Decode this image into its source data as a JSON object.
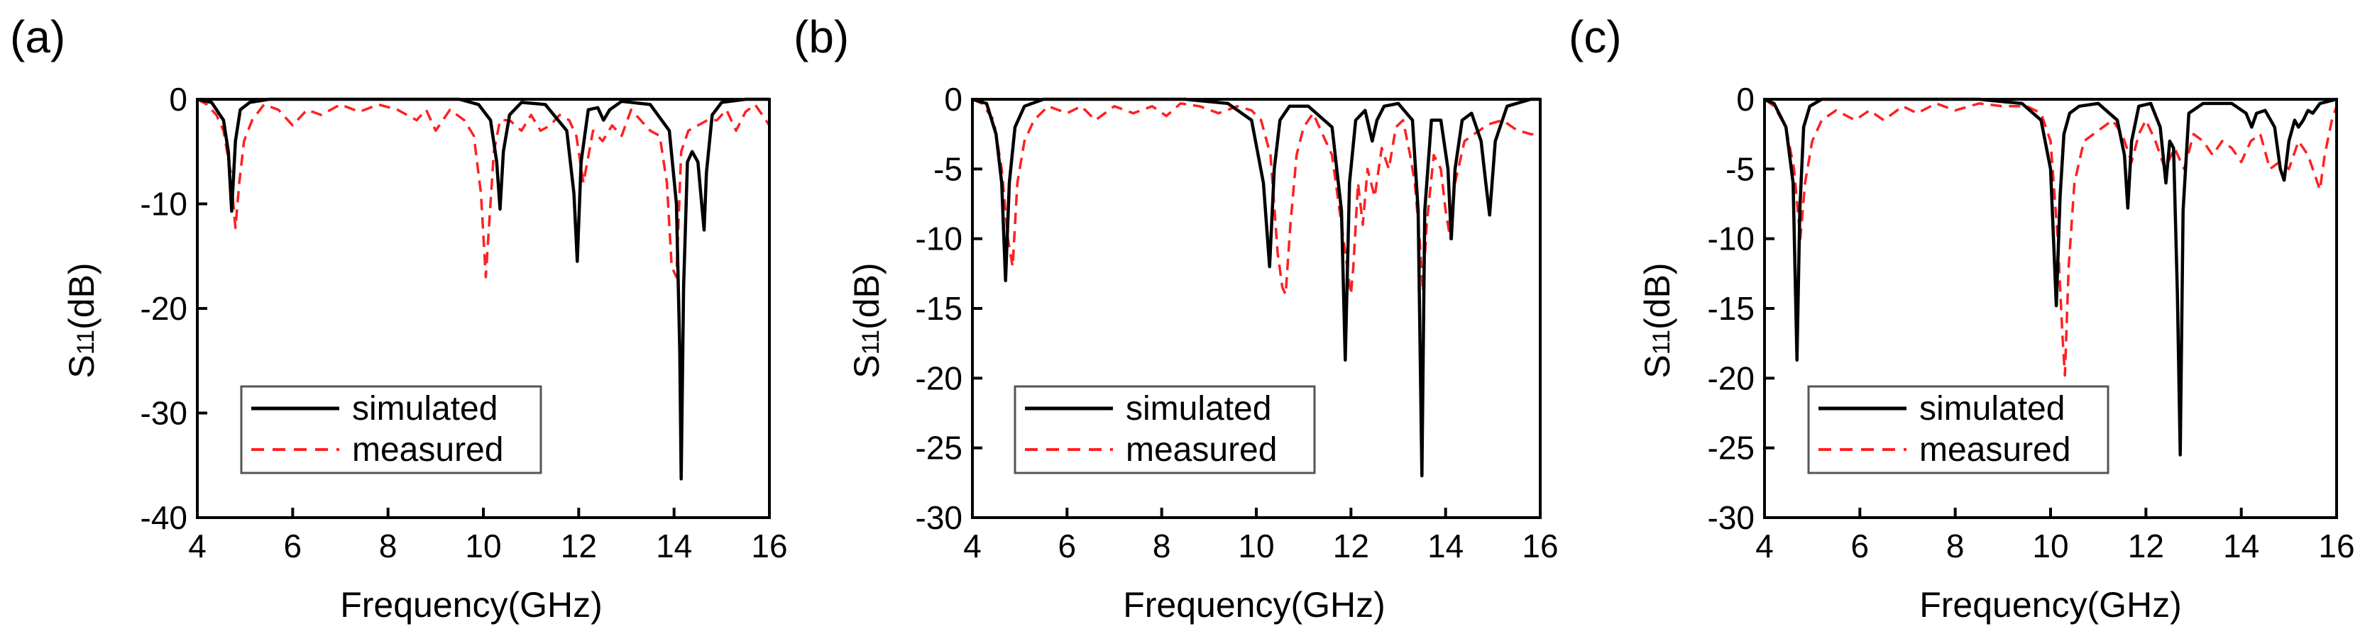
{
  "colors": {
    "simulated": "#000000",
    "measured": "#ff2020",
    "axis": "#000000",
    "legend_border": "#555555"
  },
  "chart_data": [
    {
      "type": "line",
      "panel_label": "(a)",
      "xlabel": "Frequency(GHz)",
      "ylabel_main": "S",
      "ylabel_sub": "11",
      "ylabel_unit": "(dB)",
      "xlim": [
        4,
        16
      ],
      "ylim": [
        -40,
        0
      ],
      "xticks": [
        4,
        6,
        8,
        10,
        12,
        14,
        16
      ],
      "yticks": [
        0,
        -10,
        -20,
        -30,
        -40
      ],
      "series": [
        {
          "name": "simulated",
          "style": "solid",
          "x": [
            4.0,
            4.3,
            4.55,
            4.65,
            4.72,
            4.8,
            4.9,
            5.1,
            5.5,
            7.0,
            8.5,
            9.5,
            9.9,
            10.15,
            10.28,
            10.35,
            10.42,
            10.55,
            10.8,
            11.3,
            11.75,
            11.9,
            11.97,
            12.05,
            12.2,
            12.4,
            12.52,
            12.65,
            12.9,
            13.5,
            13.9,
            14.05,
            14.12,
            14.15,
            14.2,
            14.28,
            14.38,
            14.5,
            14.58,
            14.63,
            14.68,
            14.8,
            15.0,
            15.5,
            16.0
          ],
          "y": [
            0,
            -0.3,
            -2,
            -5,
            -10.7,
            -4,
            -1,
            -0.3,
            0,
            0,
            0,
            0,
            -0.5,
            -2,
            -6,
            -10.5,
            -5,
            -1.5,
            -0.3,
            -0.5,
            -3,
            -9,
            -15.5,
            -6,
            -1,
            -0.8,
            -2,
            -1,
            -0.2,
            -0.5,
            -3,
            -10,
            -24,
            -36.3,
            -18,
            -6,
            -5,
            -6,
            -10,
            -12.5,
            -7,
            -1.5,
            -0.3,
            0,
            0
          ]
        },
        {
          "name": "measured",
          "style": "dashed",
          "x": [
            4.0,
            4.2,
            4.4,
            4.55,
            4.7,
            4.8,
            4.88,
            4.98,
            5.15,
            5.4,
            5.7,
            6.0,
            6.3,
            6.6,
            7.0,
            7.4,
            7.8,
            8.2,
            8.6,
            8.8,
            9.0,
            9.3,
            9.6,
            9.8,
            9.95,
            10.05,
            10.12,
            10.22,
            10.35,
            10.55,
            10.8,
            11.0,
            11.2,
            11.4,
            11.6,
            11.8,
            11.95,
            12.1,
            12.3,
            12.5,
            12.7,
            12.9,
            13.1,
            13.3,
            13.5,
            13.7,
            13.85,
            13.95,
            14.05,
            14.15,
            14.3,
            14.5,
            14.7,
            14.9,
            15.1,
            15.3,
            15.5,
            15.7,
            15.85,
            16.0
          ],
          "y": [
            0,
            -0.5,
            -1.5,
            -3,
            -7,
            -12.3,
            -8,
            -4,
            -2,
            -0.5,
            -1,
            -2.5,
            -1,
            -1.5,
            -0.5,
            -1.2,
            -0.5,
            -1,
            -2,
            -1,
            -3,
            -1,
            -2,
            -3.5,
            -9,
            -17,
            -12,
            -5,
            -2,
            -2,
            -3,
            -1.5,
            -3,
            -2.5,
            -1.5,
            -2,
            -3.5,
            -8,
            -3,
            -4,
            -2.5,
            -3.5,
            -1,
            -2,
            -3,
            -3.5,
            -8,
            -16,
            -17,
            -5,
            -3,
            -2.5,
            -2,
            -2,
            -1,
            -3,
            -1.2,
            -0.5,
            -1.5,
            -2.5
          ]
        }
      ],
      "legend": [
        "simulated",
        "measured"
      ]
    },
    {
      "type": "line",
      "panel_label": "(b)",
      "xlabel": "Frequency(GHz)",
      "ylabel_main": "S",
      "ylabel_sub": "11",
      "ylabel_unit": "(dB)",
      "xlim": [
        4,
        16
      ],
      "ylim": [
        -30,
        0
      ],
      "xticks": [
        4,
        6,
        8,
        10,
        12,
        14,
        16
      ],
      "yticks": [
        0,
        -5,
        -10,
        -15,
        -20,
        -25,
        -30
      ],
      "series": [
        {
          "name": "simulated",
          "style": "solid",
          "x": [
            4.0,
            4.3,
            4.5,
            4.62,
            4.7,
            4.78,
            4.9,
            5.1,
            5.5,
            7.0,
            8.5,
            9.4,
            9.9,
            10.15,
            10.28,
            10.38,
            10.5,
            10.7,
            11.1,
            11.6,
            11.8,
            11.88,
            11.97,
            12.1,
            12.3,
            12.45,
            12.55,
            12.7,
            13.0,
            13.3,
            13.42,
            13.5,
            13.56,
            13.7,
            13.9,
            14.05,
            14.12,
            14.2,
            14.35,
            14.55,
            14.75,
            14.85,
            14.93,
            15.05,
            15.3,
            15.8,
            16.0
          ],
          "y": [
            0,
            -0.3,
            -2.5,
            -6,
            -13,
            -6,
            -2,
            -0.5,
            0,
            0,
            0,
            -0.3,
            -1.5,
            -6,
            -12,
            -5,
            -1.5,
            -0.5,
            -0.5,
            -2,
            -8,
            -18.7,
            -6,
            -1.5,
            -0.8,
            -3,
            -1.5,
            -0.5,
            -0.3,
            -1.5,
            -8,
            -27,
            -8,
            -1.5,
            -1.5,
            -5,
            -10,
            -5,
            -1.5,
            -1,
            -3,
            -6,
            -8.3,
            -3,
            -0.5,
            0,
            0
          ]
        },
        {
          "name": "measured",
          "style": "dashed",
          "x": [
            4.0,
            4.2,
            4.45,
            4.62,
            4.75,
            4.85,
            4.95,
            5.1,
            5.3,
            5.6,
            6.0,
            6.3,
            6.6,
            7.0,
            7.4,
            7.8,
            8.1,
            8.4,
            8.8,
            9.2,
            9.6,
            9.9,
            10.1,
            10.3,
            10.45,
            10.55,
            10.62,
            10.72,
            10.85,
            11.0,
            11.2,
            11.4,
            11.6,
            11.8,
            12.0,
            12.05,
            12.15,
            12.25,
            12.35,
            12.5,
            12.65,
            12.8,
            12.95,
            13.1,
            13.25,
            13.35,
            13.45,
            13.52,
            13.6,
            13.75,
            13.9,
            14.0,
            14.1,
            14.2,
            14.4,
            14.6,
            14.9,
            15.2,
            15.5,
            15.8,
            16.0
          ],
          "y": [
            0,
            -0.3,
            -1.5,
            -5,
            -10,
            -12,
            -6,
            -3,
            -1.5,
            -0.5,
            -1,
            -0.5,
            -1.5,
            -0.5,
            -1,
            -0.5,
            -1.2,
            -0.3,
            -0.5,
            -1,
            -0.5,
            -0.8,
            -1.5,
            -4,
            -11,
            -13.5,
            -14,
            -9,
            -4,
            -2,
            -1,
            -2.5,
            -4,
            -9,
            -14,
            -12,
            -6,
            -9,
            -5,
            -7,
            -3.5,
            -5,
            -2,
            -1.5,
            -4,
            -6,
            -10,
            -13.8,
            -9,
            -4,
            -5,
            -8,
            -10,
            -6,
            -3,
            -2.5,
            -1.8,
            -1.5,
            -2.2,
            -2.5,
            -2.5
          ]
        }
      ],
      "legend": [
        "simulated",
        "measured"
      ]
    },
    {
      "type": "line",
      "panel_label": "(c)",
      "xlabel": "Frequency(GHz)",
      "ylabel_main": "S",
      "ylabel_sub": "11",
      "ylabel_unit": "(dB)",
      "xlim": [
        4,
        16
      ],
      "ylim": [
        -30,
        0
      ],
      "xticks": [
        4,
        6,
        8,
        10,
        12,
        14,
        16
      ],
      "yticks": [
        0,
        -5,
        -10,
        -15,
        -20,
        -25,
        -30
      ],
      "series": [
        {
          "name": "simulated",
          "style": "solid",
          "x": [
            4.0,
            4.2,
            4.45,
            4.6,
            4.68,
            4.74,
            4.82,
            4.95,
            5.2,
            5.6,
            7.0,
            8.5,
            9.4,
            9.8,
            10.0,
            10.12,
            10.2,
            10.28,
            10.4,
            10.6,
            11.0,
            11.4,
            11.55,
            11.62,
            11.7,
            11.85,
            12.1,
            12.3,
            12.42,
            12.5,
            12.58,
            12.66,
            12.72,
            12.78,
            12.9,
            13.2,
            13.8,
            14.1,
            14.22,
            14.32,
            14.5,
            14.7,
            14.82,
            14.9,
            15.0,
            15.12,
            15.2,
            15.3,
            15.4,
            15.5,
            15.65,
            16.0
          ],
          "y": [
            0,
            -0.3,
            -2,
            -6,
            -18.7,
            -8,
            -2,
            -0.5,
            0,
            0,
            0,
            0,
            -0.3,
            -1.5,
            -5,
            -14.8,
            -7,
            -2.5,
            -1,
            -0.5,
            -0.3,
            -1.5,
            -4,
            -7.8,
            -3,
            -0.5,
            -0.3,
            -2,
            -6,
            -3,
            -3.5,
            -14,
            -25.5,
            -8,
            -1,
            -0.3,
            -0.3,
            -1,
            -2,
            -1,
            -0.8,
            -2,
            -5,
            -5.8,
            -3,
            -1.5,
            -2,
            -1.5,
            -0.8,
            -1,
            -0.3,
            0
          ]
        },
        {
          "name": "measured",
          "style": "dashed",
          "x": [
            4.0,
            4.2,
            4.45,
            4.62,
            4.75,
            4.85,
            5.0,
            5.2,
            5.5,
            5.9,
            6.2,
            6.5,
            6.9,
            7.2,
            7.6,
            8.0,
            8.5,
            9.0,
            9.5,
            9.8,
            10.0,
            10.15,
            10.25,
            10.3,
            10.38,
            10.5,
            10.7,
            10.9,
            11.1,
            11.3,
            11.5,
            11.7,
            11.85,
            12.0,
            12.2,
            12.4,
            12.6,
            12.8,
            13.0,
            13.2,
            13.4,
            13.6,
            13.8,
            14.0,
            14.2,
            14.4,
            14.6,
            14.8,
            15.0,
            15.2,
            15.4,
            15.55,
            15.65,
            15.75,
            15.9,
            16.0
          ],
          "y": [
            0,
            -0.5,
            -2,
            -5,
            -10,
            -6,
            -3,
            -1.5,
            -0.8,
            -1.5,
            -0.8,
            -1.5,
            -0.5,
            -1,
            -0.3,
            -0.8,
            -0.3,
            -0.5,
            -0.5,
            -1,
            -3,
            -10,
            -17,
            -19.8,
            -12,
            -6,
            -3,
            -2.5,
            -2,
            -1.5,
            -2.5,
            -4.5,
            -2.5,
            -1.5,
            -3,
            -5,
            -3.5,
            -5,
            -2.5,
            -3,
            -4,
            -3,
            -3.5,
            -4.5,
            -3,
            -2.5,
            -5,
            -4.5,
            -5,
            -3,
            -4,
            -5.5,
            -6.5,
            -4,
            -1.5,
            -0.5
          ]
        }
      ],
      "legend": [
        "simulated",
        "measured"
      ]
    }
  ]
}
